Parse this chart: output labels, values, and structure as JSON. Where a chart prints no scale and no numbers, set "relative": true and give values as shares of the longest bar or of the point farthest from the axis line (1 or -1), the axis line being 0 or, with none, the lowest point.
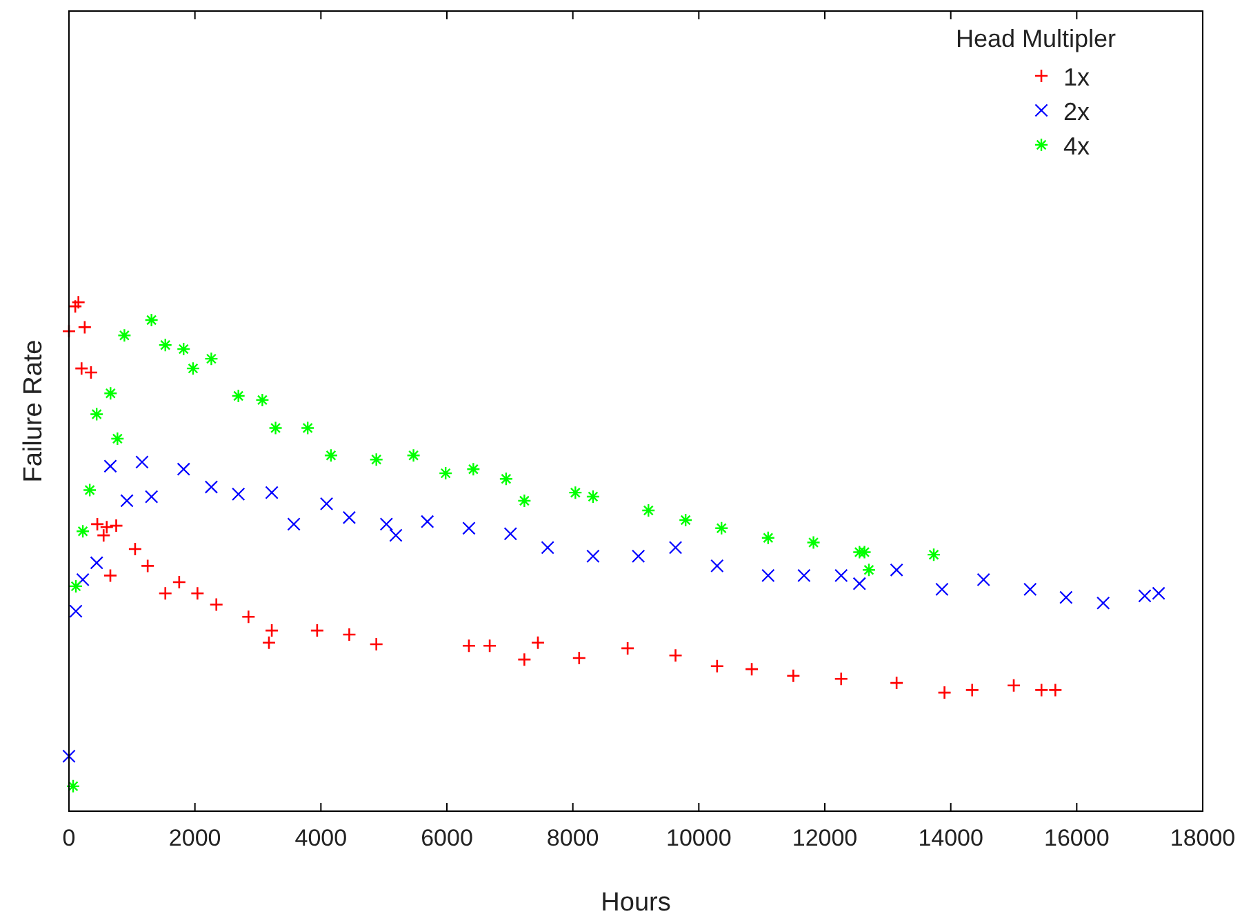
{
  "chart_data": {
    "type": "scatter",
    "relative": true,
    "xlabel": "Hours",
    "ylabel": "Failure Rate",
    "legend_title": "Head Multipler",
    "legend": "top right",
    "grid": false,
    "xlim": [
      0,
      18000
    ],
    "xticks": [
      0,
      2000,
      4000,
      6000,
      8000,
      10000,
      12000,
      14000,
      16000,
      18000
    ],
    "series": [
      {
        "name": "1x",
        "color": "#ff0000",
        "marker": "cross",
        "x": [
          0,
          100,
          150,
          250,
          200,
          350,
          450,
          550,
          600,
          750,
          657,
          1050,
          1250,
          1530,
          1750,
          2040,
          2340,
          2850,
          3175,
          3220,
          3940,
          4450,
          4880,
          6350,
          6680,
          7230,
          7445,
          8100,
          8870,
          9630,
          10290,
          10840,
          11500,
          12260,
          13140,
          13900,
          14340,
          15000,
          15440,
          15660
        ],
        "values": [
          0.943,
          0.992,
          1.0,
          0.951,
          0.87,
          0.862,
          0.564,
          0.542,
          0.558,
          0.561,
          0.463,
          0.515,
          0.482,
          0.428,
          0.45,
          0.428,
          0.406,
          0.382,
          0.331,
          0.355,
          0.355,
          0.347,
          0.328,
          0.325,
          0.325,
          0.298,
          0.331,
          0.301,
          0.32,
          0.306,
          0.285,
          0.279,
          0.266,
          0.26,
          0.252,
          0.233,
          0.238,
          0.247,
          0.238,
          0.238
        ]
      },
      {
        "name": "2x",
        "color": "#0000ff",
        "marker": "x",
        "x": [
          0,
          110,
          220,
          440,
          657,
          920,
          1160,
          1310,
          1820,
          2260,
          2690,
          3220,
          3570,
          4090,
          4450,
          5040,
          5190,
          5690,
          6350,
          7010,
          7600,
          8320,
          9040,
          9630,
          10290,
          11100,
          11670,
          12260,
          12550,
          13140,
          13860,
          14520,
          15260,
          15830,
          16420,
          17080,
          17300
        ],
        "values": [
          0.108,
          0.393,
          0.455,
          0.488,
          0.678,
          0.61,
          0.686,
          0.618,
          0.672,
          0.637,
          0.623,
          0.626,
          0.564,
          0.604,
          0.577,
          0.564,
          0.542,
          0.569,
          0.556,
          0.545,
          0.518,
          0.501,
          0.501,
          0.518,
          0.482,
          0.463,
          0.463,
          0.463,
          0.447,
          0.474,
          0.436,
          0.455,
          0.436,
          0.42,
          0.409,
          0.423,
          0.428
        ]
      },
      {
        "name": "4x",
        "color": "#00ff00",
        "marker": "star",
        "x": [
          66,
          110,
          220,
          330,
          440,
          660,
          770,
          880,
          1310,
          1530,
          1820,
          1970,
          2260,
          2690,
          3070,
          3280,
          3790,
          4160,
          4880,
          5470,
          5980,
          6420,
          6940,
          7230,
          8040,
          8320,
          9200,
          9790,
          10360,
          11100,
          11820,
          12550,
          12630,
          12700,
          13730
        ],
        "values": [
          0.049,
          0.442,
          0.55,
          0.631,
          0.78,
          0.821,
          0.732,
          0.935,
          0.965,
          0.916,
          0.908,
          0.87,
          0.889,
          0.816,
          0.808,
          0.753,
          0.753,
          0.699,
          0.691,
          0.699,
          0.664,
          0.672,
          0.653,
          0.61,
          0.626,
          0.618,
          0.591,
          0.572,
          0.556,
          0.537,
          0.528,
          0.509,
          0.509,
          0.474,
          0.504
        ]
      }
    ]
  }
}
